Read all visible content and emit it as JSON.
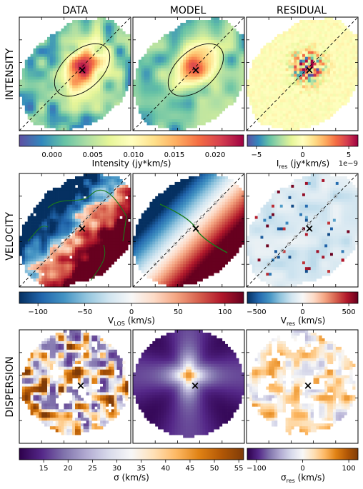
{
  "chart_data": {
    "type": "heatmap",
    "column_titles": [
      "DATA",
      "MODEL",
      "RESIDUAL"
    ],
    "row_titles": [
      "INTENSITY",
      "VELOCITY",
      "DISPERSION"
    ],
    "rows": [
      {
        "key": "intensity",
        "main_colorbar": {
          "cmap": "spectral_r",
          "vmin": -0.004,
          "vmax": 0.0235,
          "ticks": [
            0.0,
            0.005,
            0.01,
            0.015,
            0.02
          ],
          "tick_labels": [
            "0.000",
            "0.005",
            "0.010",
            "0.015",
            "0.020"
          ],
          "label": "Intensity (jy*km/s)"
        },
        "residual_colorbar": {
          "cmap": "spectral_r",
          "vmin": -6,
          "vmax": 6,
          "ticks": [
            -5,
            0,
            5
          ],
          "tick_labels": [
            "−5",
            "0",
            "5"
          ],
          "label_main": "I",
          "label_sub": "res",
          "label_rest": " (jy*km/s)",
          "offset_text": "1e−9"
        }
      },
      {
        "key": "velocity",
        "main_colorbar": {
          "cmap": "rdbu_r",
          "vmin": -120,
          "vmax": 120,
          "ticks": [
            -100,
            -50,
            0,
            50,
            100
          ],
          "tick_labels": [
            "−100",
            "−50",
            "0",
            "50",
            "100"
          ],
          "label_main": "V",
          "label_sub": "LOS",
          "label_rest": " (km/s)"
        },
        "residual_colorbar": {
          "cmap": "rdbu_r",
          "vmin": -600,
          "vmax": 600,
          "ticks": [
            -500,
            0,
            500
          ],
          "tick_labels": [
            "−500",
            "0",
            "500"
          ],
          "label_main": "V",
          "label_sub": "res",
          "label_rest": " (km/s)"
        }
      },
      {
        "key": "dispersion",
        "main_colorbar": {
          "cmap": "puor_r",
          "vmin": 10,
          "vmax": 56,
          "ticks": [
            15,
            20,
            25,
            30,
            35,
            40,
            45,
            50,
            55
          ],
          "tick_labels": [
            "15",
            "20",
            "25",
            "30",
            "35",
            "40",
            "45",
            "50",
            "55"
          ],
          "label": "σ (km/s)"
        },
        "residual_colorbar": {
          "cmap": "puor_r",
          "vmin": -120,
          "vmax": 120,
          "ticks": [
            -100,
            0,
            100
          ],
          "tick_labels": [
            "−100",
            "0",
            "100"
          ],
          "label_main": "σ",
          "label_sub": "res",
          "label_rest": " (km/s)"
        }
      }
    ],
    "center_marker": "×",
    "major_axis_line": "dashed"
  }
}
